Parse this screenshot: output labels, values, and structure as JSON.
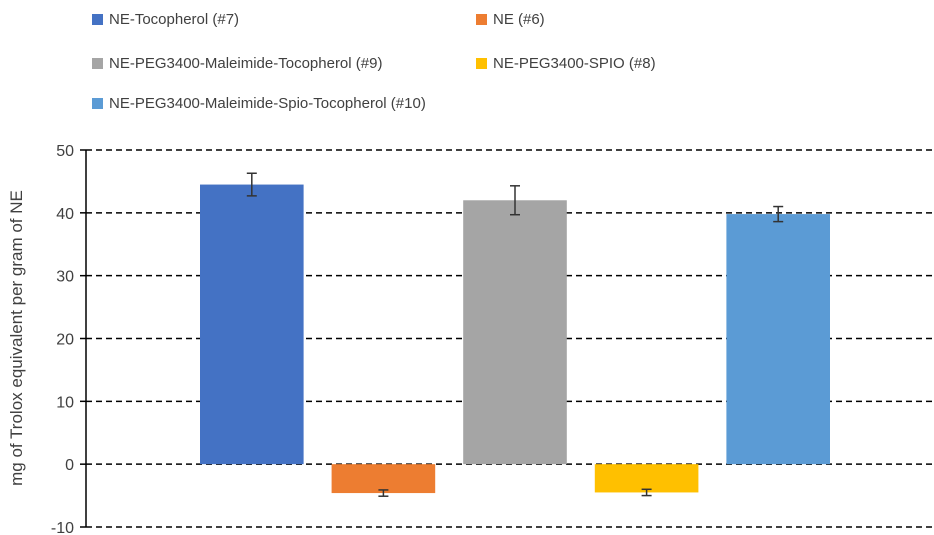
{
  "chart_data": {
    "type": "bar",
    "title": "",
    "xlabel": "",
    "ylabel": "mg of Trolox equivalent per gram of NE",
    "ylim": [
      -10,
      50
    ],
    "yticks": [
      -10,
      0,
      10,
      20,
      30,
      40,
      50
    ],
    "grid": true,
    "legend_position": "top",
    "series": [
      {
        "name": "NE-Tocopherol (#7)",
        "value": 44.5,
        "error": 1.8,
        "color": "#4472C4"
      },
      {
        "name": "NE (#6)",
        "value": -4.6,
        "error": 0.5,
        "color": "#ED7D31"
      },
      {
        "name": "NE-PEG3400-Maleimide-Tocopherol (#9)",
        "value": 42.0,
        "error": 2.3,
        "color": "#A5A5A5"
      },
      {
        "name": "NE-PEG3400-SPIO (#8)",
        "value": -4.5,
        "error": 0.5,
        "color": "#FFC000"
      },
      {
        "name": "NE-PEG3400-Maleimide-Spio-Tocopherol (#10)",
        "value": 39.8,
        "error": 1.2,
        "color": "#5B9BD5"
      }
    ]
  }
}
